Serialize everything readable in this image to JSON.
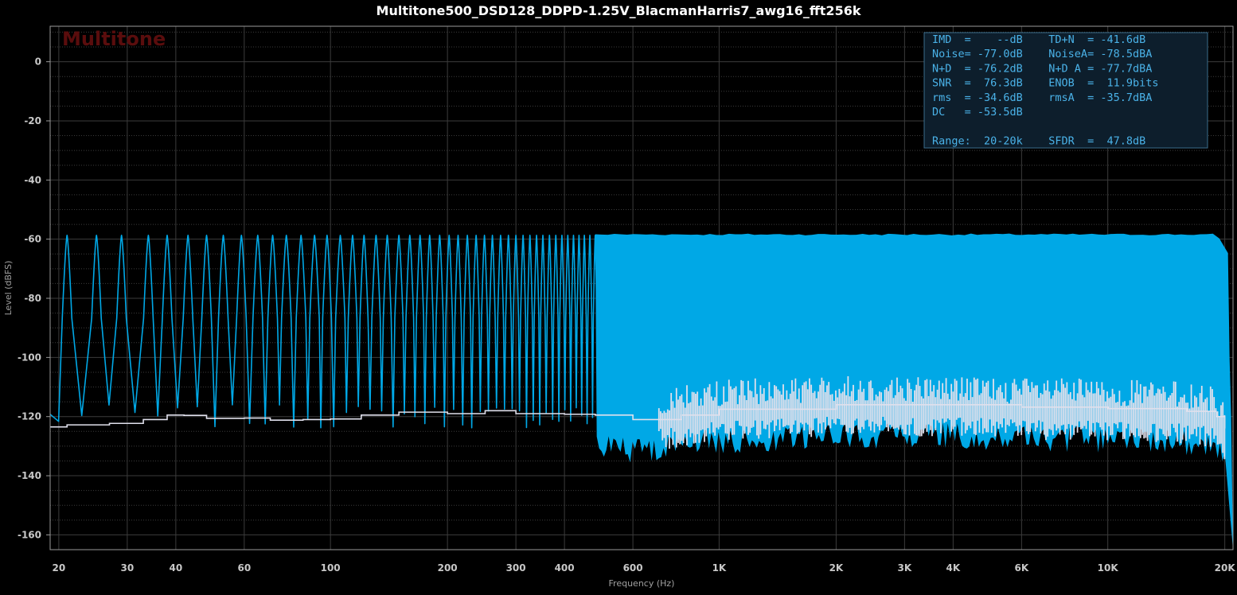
{
  "chart_data": {
    "type": "line",
    "title": "Multitone500_DSD128_DDPD-1.25V_BlacmanHarris7_awg16_fft256k",
    "watermark": "Multitone",
    "xlabel": "Frequency (Hz)",
    "ylabel": "Level (dBFS)",
    "xscale": "log",
    "xlim": [
      19,
      21000
    ],
    "ylim": [
      -165,
      12
    ],
    "grid": true,
    "x_ticks": [
      {
        "value": 20,
        "label": "20"
      },
      {
        "value": 30,
        "label": "30"
      },
      {
        "value": 40,
        "label": "40"
      },
      {
        "value": 60,
        "label": "60"
      },
      {
        "value": 100,
        "label": "100"
      },
      {
        "value": 200,
        "label": "200"
      },
      {
        "value": 300,
        "label": "300"
      },
      {
        "value": 400,
        "label": "400"
      },
      {
        "value": 600,
        "label": "600"
      },
      {
        "value": 1000,
        "label": "1K"
      },
      {
        "value": 2000,
        "label": "2K"
      },
      {
        "value": 3000,
        "label": "3K"
      },
      {
        "value": 4000,
        "label": "4K"
      },
      {
        "value": 6000,
        "label": "6K"
      },
      {
        "value": 10000,
        "label": "10K"
      },
      {
        "value": 20000,
        "label": "20K"
      }
    ],
    "y_ticks": [
      {
        "value": 0,
        "label": "0"
      },
      {
        "value": -20,
        "label": "-20"
      },
      {
        "value": -40,
        "label": "-40"
      },
      {
        "value": -60,
        "label": "-60"
      },
      {
        "value": -80,
        "label": "-80"
      },
      {
        "value": -100,
        "label": "-100"
      },
      {
        "value": -120,
        "label": "-120"
      },
      {
        "value": -140,
        "label": "-140"
      },
      {
        "value": -160,
        "label": "-160"
      }
    ],
    "series": [
      {
        "role": "spectrum",
        "color": "#00a8e6",
        "tone_level_db": -58.7,
        "tone_freqs_hz": [
          21,
          25,
          29,
          34,
          38,
          43,
          48,
          53,
          59,
          65,
          71,
          77,
          84,
          91,
          98,
          106,
          114,
          122,
          131,
          140,
          150,
          160,
          170,
          180,
          191,
          202,
          213,
          225,
          237,
          249,
          261,
          274,
          287,
          300,
          313,
          326,
          339,
          352,
          366,
          380,
          394,
          408,
          422,
          436,
          450,
          465,
          480
        ],
        "dense_band_hz": [
          480,
          20000
        ],
        "residual_floor_db": -120
      },
      {
        "role": "noise-floor",
        "color": "#e0e0ec",
        "x": [
          19,
          20,
          21,
          27,
          32,
          33,
          38,
          42,
          48,
          60,
          70,
          85,
          100,
          120,
          150,
          200,
          250,
          300,
          400,
          480,
          600,
          800,
          1000,
          2000,
          4000,
          6000,
          10000,
          16000,
          19000,
          20000
        ],
        "y": [
          -123.5,
          -123.5,
          -122.8,
          -122.3,
          -122.3,
          -121,
          -119.5,
          -119.6,
          -120.6,
          -120.5,
          -121.2,
          -121,
          -120.8,
          -119.5,
          -118.5,
          -119,
          -118,
          -119,
          -119.2,
          -119.5,
          -121,
          -119.5,
          -117.5,
          -116,
          -116,
          -116.8,
          -117.3,
          -118.2,
          -120,
          -124
        ]
      }
    ]
  },
  "stats": {
    "rows": [
      "IMD  =    --dB    TD+N  = -41.6dB",
      "Noise= -77.0dB    NoiseA= -78.5dBA",
      "N+D  = -76.2dB    N+D A = -77.7dBA",
      "SNR  =  76.3dB    ENOB  =  11.9bits",
      "rms  = -34.6dB    rmsA  = -35.7dBA",
      "DC   = -53.5dB",
      "",
      "Range:  20-20k    SFDR  =  47.8dB"
    ]
  },
  "colors": {
    "background": "#000000",
    "grid": "#3c3c3c",
    "frame": "#9a9a9a",
    "spectrum": "#00a8e6",
    "noise_floor": "#e0e0ec",
    "stats_box_fill": "#0d1e2c",
    "stats_box_border": "#3a6d8c",
    "stats_text": "#4ab2e8"
  }
}
